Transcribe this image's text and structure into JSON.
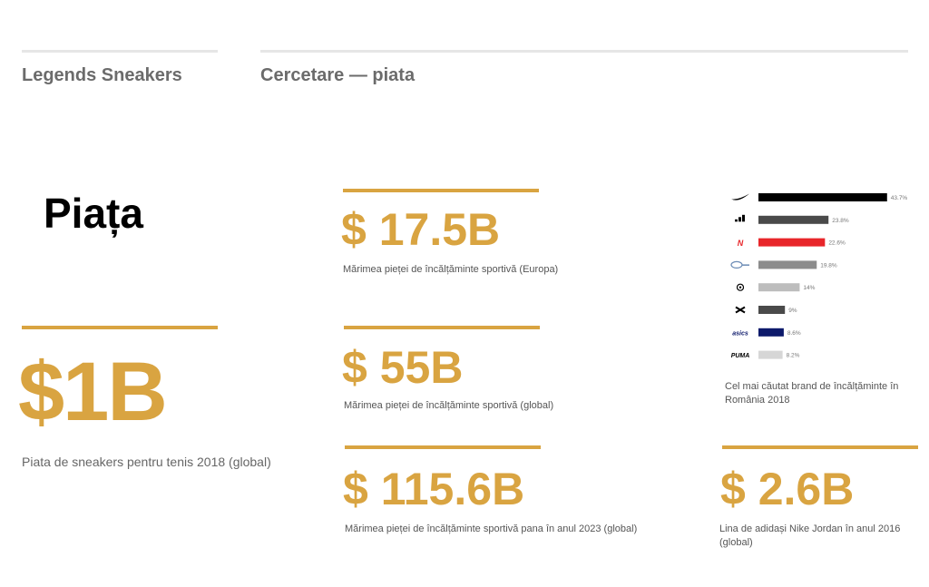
{
  "headers": {
    "left": "Legends Sneakers",
    "right": "Cercetare — piata"
  },
  "section_title": "Piața",
  "stats": {
    "tennis": {
      "value": "$1B",
      "caption": "Piata de sneakers pentru tenis 2018 (global)"
    },
    "europe": {
      "value": "$ 17.5B",
      "caption": "Mărimea pieței de încălțăminte sportivă (Europa)"
    },
    "global": {
      "value": "$ 55B",
      "caption": "Mărimea pieței de încălțăminte sportivă (global)"
    },
    "forecast": {
      "value": "$ 115.6B",
      "caption": "Mărimea pieței de încălțăminte sportivă pana în anul 2023 (global)"
    },
    "jordan": {
      "value": "$ 2.6B",
      "caption_line1": "Lina de adidași Nike Jordan în anul 2016",
      "caption_line2": "(global)"
    }
  },
  "chart_caption": {
    "line1": "Cel mai căutat brand de încălțăminte în",
    "line2": "România 2018"
  },
  "chart_data": {
    "type": "bar",
    "orientation": "horizontal",
    "categories": [
      "Nike",
      "adidas",
      "New Balance",
      "Reebok",
      "Converse",
      "Under Armour",
      "asics",
      "Puma"
    ],
    "values": [
      43.7,
      23.8,
      22.6,
      19.8,
      14,
      9,
      8.6,
      8.2
    ],
    "value_labels": [
      "43.7%",
      "23.8%",
      "22.6%",
      "19.8%",
      "14%",
      "9%",
      "8.6%",
      "8.2%"
    ],
    "colors": [
      "#000000",
      "#4a4a4a",
      "#e8262a",
      "#8c8c8c",
      "#bdbdbd",
      "#4a4a4a",
      "#0d1a6b",
      "#d6d6d6"
    ],
    "icons": [
      "nike-swoosh-icon",
      "adidas-logo-icon",
      "new-balance-logo-icon",
      "reebok-logo-icon",
      "converse-logo-icon",
      "under-armour-logo-icon",
      "asics-logo-icon",
      "puma-logo-icon"
    ],
    "icon_text": [
      "",
      "",
      "",
      "",
      "",
      "",
      "asics",
      "PUMA"
    ],
    "xlim": [
      0,
      45
    ],
    "grid": false,
    "legend": "none"
  }
}
